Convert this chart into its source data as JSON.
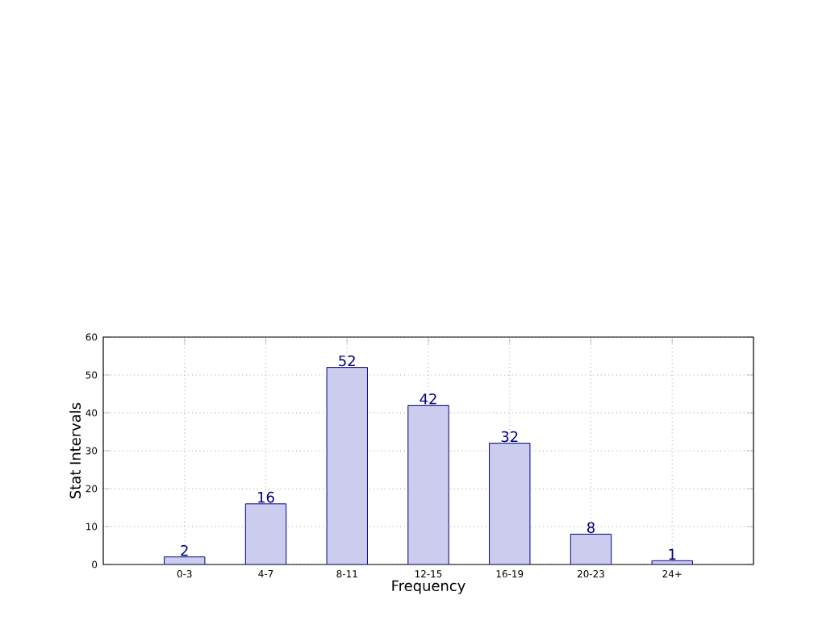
{
  "chart_data": {
    "type": "bar",
    "xlabel": "Frequency",
    "ylabel": "Stat Intervals",
    "categories": [
      "0-3",
      "4-7",
      "8-11",
      "12-15",
      "16-19",
      "20-23",
      "24+"
    ],
    "values": [
      2,
      16,
      52,
      42,
      32,
      8,
      1
    ],
    "color": "#ccccee",
    "ylim": [
      0,
      60
    ],
    "yticks": [
      0,
      10,
      20,
      30,
      40,
      50,
      60
    ],
    "grid": true,
    "data_labels": true
  }
}
